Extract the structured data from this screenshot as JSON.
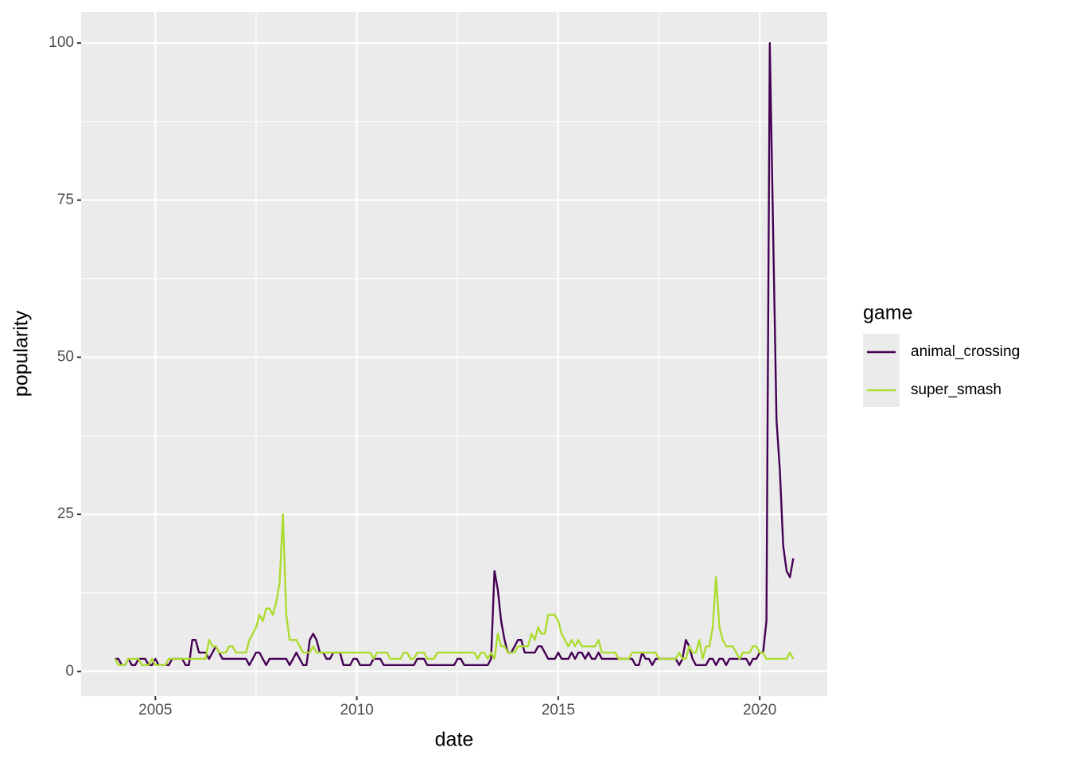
{
  "chart_data": {
    "type": "line",
    "x_label": "date",
    "y_label": "popularity",
    "legend_title": "game",
    "x": [
      2004,
      2004.083,
      2004.167,
      2004.25,
      2004.333,
      2004.417,
      2004.5,
      2004.583,
      2004.667,
      2004.75,
      2004.833,
      2004.917,
      2005,
      2005.083,
      2005.167,
      2005.25,
      2005.333,
      2005.417,
      2005.5,
      2005.583,
      2005.667,
      2005.75,
      2005.833,
      2005.917,
      2006,
      2006.083,
      2006.167,
      2006.25,
      2006.333,
      2006.417,
      2006.5,
      2006.583,
      2006.667,
      2006.75,
      2006.833,
      2006.917,
      2007,
      2007.083,
      2007.167,
      2007.25,
      2007.333,
      2007.417,
      2007.5,
      2007.583,
      2007.667,
      2007.75,
      2007.833,
      2007.917,
      2008,
      2008.083,
      2008.167,
      2008.25,
      2008.333,
      2008.417,
      2008.5,
      2008.583,
      2008.667,
      2008.75,
      2008.833,
      2008.917,
      2009,
      2009.083,
      2009.167,
      2009.25,
      2009.333,
      2009.417,
      2009.5,
      2009.583,
      2009.667,
      2009.75,
      2009.833,
      2009.917,
      2010,
      2010.083,
      2010.167,
      2010.25,
      2010.333,
      2010.417,
      2010.5,
      2010.583,
      2010.667,
      2010.75,
      2010.833,
      2010.917,
      2011,
      2011.083,
      2011.167,
      2011.25,
      2011.333,
      2011.417,
      2011.5,
      2011.583,
      2011.667,
      2011.75,
      2011.833,
      2011.917,
      2012,
      2012.083,
      2012.167,
      2012.25,
      2012.333,
      2012.417,
      2012.5,
      2012.583,
      2012.667,
      2012.75,
      2012.833,
      2012.917,
      2013,
      2013.083,
      2013.167,
      2013.25,
      2013.333,
      2013.417,
      2013.5,
      2013.583,
      2013.667,
      2013.75,
      2013.833,
      2013.917,
      2014,
      2014.083,
      2014.167,
      2014.25,
      2014.333,
      2014.417,
      2014.5,
      2014.583,
      2014.667,
      2014.75,
      2014.833,
      2014.917,
      2015,
      2015.083,
      2015.167,
      2015.25,
      2015.333,
      2015.417,
      2015.5,
      2015.583,
      2015.667,
      2015.75,
      2015.833,
      2015.917,
      2016,
      2016.083,
      2016.167,
      2016.25,
      2016.333,
      2016.417,
      2016.5,
      2016.583,
      2016.667,
      2016.75,
      2016.833,
      2016.917,
      2017,
      2017.083,
      2017.167,
      2017.25,
      2017.333,
      2017.417,
      2017.5,
      2017.583,
      2017.667,
      2017.75,
      2017.833,
      2017.917,
      2018,
      2018.083,
      2018.167,
      2018.25,
      2018.333,
      2018.417,
      2018.5,
      2018.583,
      2018.667,
      2018.75,
      2018.833,
      2018.917,
      2019,
      2019.083,
      2019.167,
      2019.25,
      2019.333,
      2019.417,
      2019.5,
      2019.583,
      2019.667,
      2019.75,
      2019.833,
      2019.917,
      2020,
      2020.083,
      2020.167,
      2020.25,
      2020.333,
      2020.417,
      2020.5,
      2020.583,
      2020.667,
      2020.75,
      2020.833
    ],
    "series": [
      {
        "name": "animal_crossing",
        "color": "#440154",
        "values": [
          2,
          2,
          1,
          1,
          2,
          1,
          1,
          2,
          2,
          2,
          1,
          1,
          2,
          1,
          1,
          1,
          1,
          2,
          2,
          2,
          2,
          1,
          1,
          5,
          5,
          3,
          3,
          3,
          2,
          3,
          4,
          3,
          2,
          2,
          2,
          2,
          2,
          2,
          2,
          2,
          1,
          2,
          3,
          3,
          2,
          1,
          2,
          2,
          2,
          2,
          2,
          2,
          1,
          2,
          3,
          2,
          1,
          1,
          5,
          6,
          5,
          3,
          3,
          2,
          2,
          3,
          3,
          3,
          1,
          1,
          1,
          2,
          2,
          1,
          1,
          1,
          1,
          2,
          2,
          2,
          1,
          1,
          1,
          1,
          1,
          1,
          1,
          1,
          1,
          1,
          2,
          2,
          2,
          1,
          1,
          1,
          1,
          1,
          1,
          1,
          1,
          1,
          2,
          2,
          1,
          1,
          1,
          1,
          1,
          1,
          1,
          1,
          2,
          16,
          13,
          8,
          5,
          3,
          3,
          4,
          5,
          5,
          3,
          3,
          3,
          3,
          4,
          4,
          3,
          2,
          2,
          2,
          3,
          2,
          2,
          2,
          3,
          2,
          3,
          3,
          2,
          3,
          2,
          2,
          3,
          2,
          2,
          2,
          2,
          2,
          2,
          2,
          2,
          2,
          2,
          1,
          1,
          3,
          2,
          2,
          1,
          2,
          2,
          2,
          2,
          2,
          2,
          2,
          1,
          2,
          5,
          4,
          2,
          1,
          1,
          1,
          1,
          2,
          2,
          1,
          2,
          2,
          1,
          2,
          2,
          2,
          2,
          2,
          2,
          1,
          2,
          2,
          3,
          3,
          8,
          100,
          70,
          40,
          32,
          20,
          16,
          15,
          18
        ]
      },
      {
        "name": "super_smash",
        "color": "#addc30",
        "values": [
          2,
          1,
          1,
          1,
          2,
          2,
          2,
          2,
          1,
          1,
          1,
          2,
          1,
          1,
          1,
          1,
          2,
          2,
          2,
          2,
          2,
          2,
          2,
          2,
          2,
          2,
          2,
          2,
          5,
          4,
          4,
          3,
          3,
          3,
          4,
          4,
          3,
          3,
          3,
          3,
          5,
          6,
          7,
          9,
          8,
          10,
          10,
          9,
          11,
          14,
          25,
          9,
          5,
          5,
          5,
          4,
          3,
          3,
          3,
          4,
          3,
          3,
          3,
          3,
          3,
          3,
          3,
          3,
          3,
          3,
          3,
          3,
          3,
          3,
          3,
          3,
          3,
          2,
          3,
          3,
          3,
          3,
          2,
          2,
          2,
          2,
          3,
          3,
          2,
          2,
          3,
          3,
          3,
          2,
          2,
          2,
          3,
          3,
          3,
          3,
          3,
          3,
          3,
          3,
          3,
          3,
          3,
          3,
          2,
          3,
          3,
          2,
          3,
          2,
          6,
          4,
          4,
          3,
          3,
          3,
          4,
          4,
          4,
          4,
          6,
          5,
          7,
          6,
          6,
          9,
          9,
          9,
          8,
          6,
          5,
          4,
          5,
          4,
          5,
          4,
          4,
          4,
          4,
          4,
          5,
          3,
          3,
          3,
          3,
          3,
          2,
          2,
          2,
          2,
          3,
          3,
          3,
          3,
          3,
          3,
          3,
          3,
          2,
          2,
          2,
          2,
          2,
          2,
          3,
          2,
          2,
          4,
          3,
          3,
          5,
          2,
          4,
          4,
          7,
          15,
          7,
          5,
          4,
          4,
          4,
          3,
          2,
          3,
          3,
          3,
          4,
          4,
          3,
          3,
          2,
          2,
          2,
          2,
          2,
          2,
          2,
          3,
          2
        ]
      }
    ],
    "xlim": [
      2003.158,
      2021.675
    ],
    "xticks": [
      2005,
      2010,
      2015,
      2020
    ],
    "ylim": [
      -3.95,
      104.95
    ],
    "yticks": [
      0,
      25,
      50,
      75,
      100
    ],
    "grid": true
  }
}
